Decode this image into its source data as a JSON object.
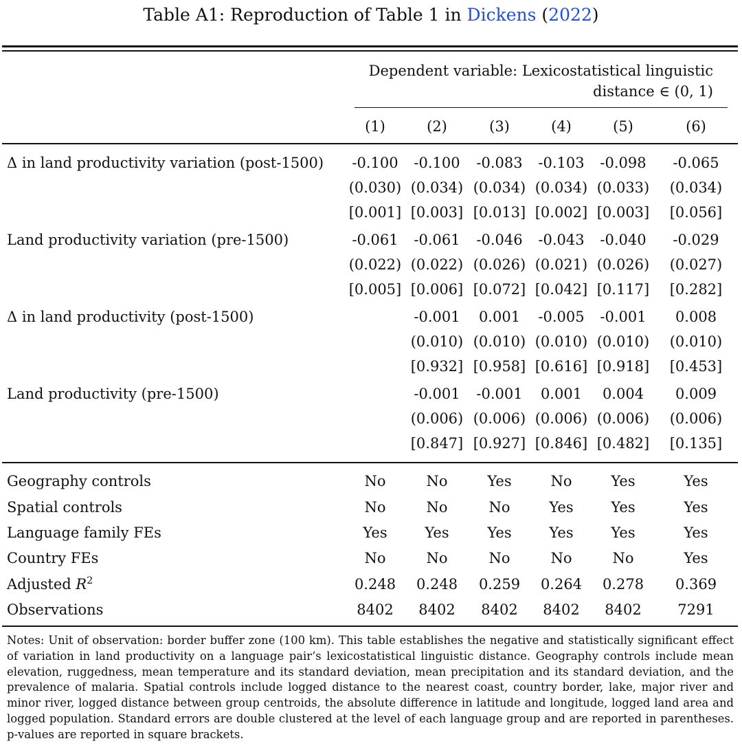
{
  "caption": {
    "prefix": "Table A1: Reproduction of Table 1 in",
    "author": "Dickens",
    "year": "2022"
  },
  "header": {
    "dv_line1": "Dependent variable: Lexicostatistical linguistic",
    "dv_line2": "distance ∈ (0, 1)",
    "columns": [
      "(1)",
      "(2)",
      "(3)",
      "(4)",
      "(5)",
      "(6)"
    ]
  },
  "variables": [
    {
      "label": "Δ in land productivity variation (post-1500)",
      "coef": [
        "-0.100",
        "-0.100",
        "-0.083",
        "-0.103",
        "-0.098",
        "-0.065"
      ],
      "se": [
        "(0.030)",
        "(0.034)",
        "(0.034)",
        "(0.034)",
        "(0.033)",
        "(0.034)"
      ],
      "p": [
        "[0.001]",
        "[0.003]",
        "[0.013]",
        "[0.002]",
        "[0.003]",
        "[0.056]"
      ]
    },
    {
      "label": "Land productivity variation (pre-1500)",
      "coef": [
        "-0.061",
        "-0.061",
        "-0.046",
        "-0.043",
        "-0.040",
        "-0.029"
      ],
      "se": [
        "(0.022)",
        "(0.022)",
        "(0.026)",
        "(0.021)",
        "(0.026)",
        "(0.027)"
      ],
      "p": [
        "[0.005]",
        "[0.006]",
        "[0.072]",
        "[0.042]",
        "[0.117]",
        "[0.282]"
      ]
    },
    {
      "label": "Δ in land productivity (post-1500)",
      "coef": [
        "",
        "-0.001",
        "0.001",
        "-0.005",
        "-0.001",
        "0.008"
      ],
      "se": [
        "",
        "(0.010)",
        "(0.010)",
        "(0.010)",
        "(0.010)",
        "(0.010)"
      ],
      "p": [
        "",
        "[0.932]",
        "[0.958]",
        "[0.616]",
        "[0.918]",
        "[0.453]"
      ]
    },
    {
      "label": "Land productivity (pre-1500)",
      "coef": [
        "",
        "-0.001",
        "-0.001",
        "0.001",
        "0.004",
        "0.009"
      ],
      "se": [
        "",
        "(0.006)",
        "(0.006)",
        "(0.006)",
        "(0.006)",
        "(0.006)"
      ],
      "p": [
        "",
        "[0.847]",
        "[0.927]",
        "[0.846]",
        "[0.482]",
        "[0.135]"
      ]
    }
  ],
  "controls": [
    {
      "label": "Geography controls",
      "values": [
        "No",
        "No",
        "Yes",
        "No",
        "Yes",
        "Yes"
      ]
    },
    {
      "label": "Spatial controls",
      "values": [
        "No",
        "No",
        "No",
        "Yes",
        "Yes",
        "Yes"
      ]
    },
    {
      "label": "Language family FEs",
      "values": [
        "Yes",
        "Yes",
        "Yes",
        "Yes",
        "Yes",
        "Yes"
      ]
    },
    {
      "label": "Country FEs",
      "values": [
        "No",
        "No",
        "No",
        "No",
        "No",
        "Yes"
      ]
    }
  ],
  "adj_r2": {
    "label": "Adjusted",
    "symbol": "R",
    "power": "2",
    "values": [
      "0.248",
      "0.248",
      "0.259",
      "0.264",
      "0.278",
      "0.369"
    ]
  },
  "observations": {
    "label": "Observations",
    "values": [
      "8402",
      "8402",
      "8402",
      "8402",
      "8402",
      "7291"
    ]
  },
  "notes": "Notes: Unit of observation: border buffer zone (100 km). This table establishes the negative and statistically significant effect of variation in land productivity on a language pair‘s lexicostatistical linguistic distance. Geography controls include mean elevation, ruggedness, mean temperature and its standard deviation, mean precipitation and its standard deviation, and the prevalence of malaria. Spatial controls include logged distance to the nearest coast, country border, lake, major river and minor river, logged distance between group centroids, the absolute difference in latitude and longitude, logged land area and logged population. Standard errors are double clustered at the level of each language group and are reported in parentheses. p-values are reported in square brackets."
}
